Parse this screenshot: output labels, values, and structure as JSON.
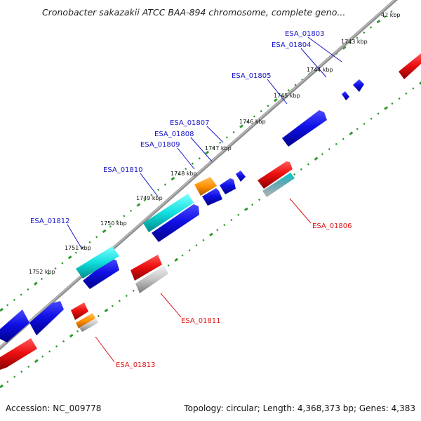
{
  "title": "Cronobacter sakazakii ATCC BAA-894 chromosome, complete geno...",
  "accession_text": "Accession: NC_009778",
  "summary_text": "Topology: circular; Length: 4,368,373 bp; Genes: 4,383",
  "colors": {
    "backbone": "#8e8e8e",
    "ruler_ticks": "#2e9a2e",
    "label_blue": "#1616c8",
    "label_red": "#e01616"
  },
  "scale_labels": [
    "42 kbp",
    "1743 kbp",
    "1744 kbp",
    "1745 kbp",
    "1746 kbp",
    "1747 kbp",
    "1748 kbp",
    "1749 kbp",
    "1750 kbp",
    "1751 kbp",
    "1752 kbp"
  ],
  "gene_labels": {
    "ESA_01803": "ESA_01803",
    "ESA_01804": "ESA_01804",
    "ESA_01805": "ESA_01805",
    "ESA_01806": "ESA_01806",
    "ESA_01807": "ESA_01807",
    "ESA_01808": "ESA_01808",
    "ESA_01809": "ESA_01809",
    "ESA_01810": "ESA_01810",
    "ESA_01811": "ESA_01811",
    "ESA_01812": "ESA_01812",
    "ESA_01813": "ESA_01813"
  },
  "features": [
    {
      "type": "gene",
      "strand": "+",
      "color": "blue"
    },
    {
      "type": "gene",
      "strand": "+",
      "color": "blue"
    },
    {
      "type": "gene",
      "strand": "+",
      "color": "blue"
    },
    {
      "type": "gene",
      "strand": "+",
      "color": "blue"
    },
    {
      "type": "gene",
      "strand": "+",
      "color": "blue"
    },
    {
      "type": "gene",
      "strand": "+",
      "color": "blue"
    },
    {
      "type": "gene",
      "strand": "+",
      "color": "blue"
    },
    {
      "type": "gene",
      "strand": "+",
      "color": "blue"
    },
    {
      "type": "gene",
      "strand": "+",
      "color": "blue"
    },
    {
      "type": "cds",
      "strand": "+",
      "color": "cyan"
    },
    {
      "type": "cds",
      "strand": "+",
      "color": "cyan"
    },
    {
      "type": "misc",
      "strand": "+",
      "color": "orange"
    },
    {
      "type": "gene",
      "strand": "-",
      "color": "red"
    },
    {
      "type": "gene",
      "strand": "-",
      "color": "red"
    },
    {
      "type": "gene",
      "strand": "-",
      "color": "red"
    },
    {
      "type": "gene",
      "strand": "-",
      "color": "red"
    },
    {
      "type": "gene",
      "strand": "-",
      "color": "red"
    },
    {
      "type": "cds",
      "strand": "-",
      "color": "cyan"
    },
    {
      "type": "cds",
      "strand": "-",
      "color": "gray"
    },
    {
      "type": "cds",
      "strand": "-",
      "color": "gray"
    },
    {
      "type": "misc",
      "strand": "-",
      "color": "orange"
    }
  ]
}
